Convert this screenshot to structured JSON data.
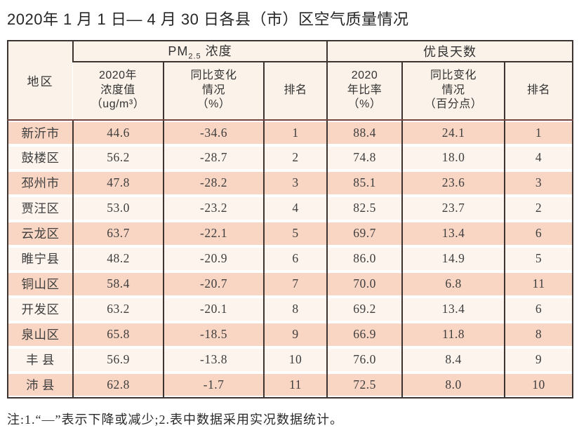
{
  "title": "2020年 1 月 1 日— 4 月 30 日各县（市）区空气质量情况",
  "note": "注:1.“—”表示下降或减少;2.表中数据采用实况数据统计。",
  "colors": {
    "row_salmon": "#f9d6c4",
    "row_cream": "#fdf4ed",
    "header_bg": "#fbf2e9",
    "border_dark": "#3d3330",
    "header_line": "#74453c",
    "text_dark": "#3e3e3e"
  },
  "chart_data": {
    "type": "table",
    "title": "2020年 1 月 1 日— 4 月 30 日各县（市）区空气质量情况",
    "column_groups": {
      "region": "地区",
      "pm25": {
        "base": "PM",
        "sub": "2.5",
        "rest": " 浓度"
      },
      "good_days": "优良天数"
    },
    "sub_headers": [
      "2020年\n浓度值\n（ug/m³）",
      "同比变化\n情况\n（%）",
      "排名",
      "2020\n年比率\n（%）",
      "同比变化\n情况\n（百分点）",
      "排名"
    ],
    "rows": [
      [
        "新沂市",
        "44.6",
        "-34.6",
        "1",
        "88.4",
        "24.1",
        "1"
      ],
      [
        "鼓楼区",
        "56.2",
        "-28.7",
        "2",
        "74.8",
        "18.0",
        "4"
      ],
      [
        "邳州市",
        "47.8",
        "-28.2",
        "3",
        "85.1",
        "23.6",
        "3"
      ],
      [
        "贾汪区",
        "53.0",
        "-23.2",
        "4",
        "82.5",
        "23.7",
        "2"
      ],
      [
        "云龙区",
        "63.7",
        "-22.1",
        "5",
        "69.7",
        "13.4",
        "6"
      ],
      [
        "睢宁县",
        "48.2",
        "-20.9",
        "6",
        "86.0",
        "14.9",
        "5"
      ],
      [
        "铜山区",
        "58.4",
        "-20.7",
        "7",
        "70.0",
        "6.8",
        "11"
      ],
      [
        "开发区",
        "63.2",
        "-20.1",
        "8",
        "69.2",
        "13.4",
        "6"
      ],
      [
        "泉山区",
        "65.8",
        "-18.5",
        "9",
        "66.9",
        "11.8",
        "8"
      ],
      [
        "丰 县",
        "56.9",
        "-13.8",
        "10",
        "76.0",
        "8.4",
        "9"
      ],
      [
        "沛 县",
        "62.8",
        "-1.7",
        "11",
        "72.5",
        "8.0",
        "10"
      ]
    ],
    "note": "注:1.“—”表示下降或减少;2.表中数据采用实况数据统计。"
  }
}
